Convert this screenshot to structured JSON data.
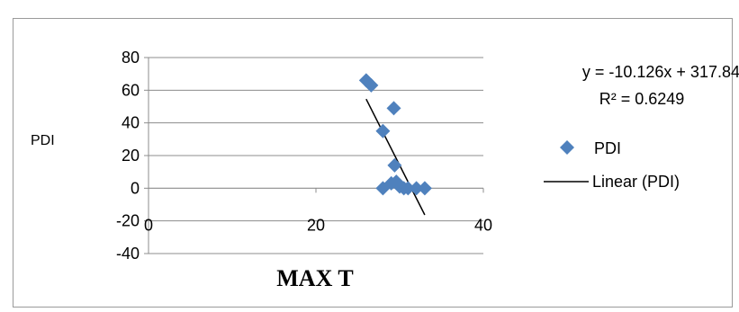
{
  "chart_data": {
    "type": "scatter",
    "xlabel": "MAX T",
    "ylabel": "PDI",
    "xlim": [
      0,
      40
    ],
    "ylim": [
      -40,
      80
    ],
    "x_ticks": [
      0,
      20,
      40
    ],
    "y_ticks": [
      -40,
      -20,
      0,
      20,
      40,
      60,
      80
    ],
    "grid": "horizontal",
    "legend_position": "right",
    "series": [
      {
        "name": "PDI",
        "marker": "diamond",
        "color": "#4F81BD",
        "points": [
          {
            "x": 26.0,
            "y": 66
          },
          {
            "x": 26.6,
            "y": 63
          },
          {
            "x": 28.0,
            "y": 35
          },
          {
            "x": 29.3,
            "y": 49
          },
          {
            "x": 29.4,
            "y": 14
          },
          {
            "x": 28.0,
            "y": 0
          },
          {
            "x": 29.0,
            "y": 3
          },
          {
            "x": 29.6,
            "y": 4
          },
          {
            "x": 30.0,
            "y": 1
          },
          {
            "x": 30.5,
            "y": 0
          },
          {
            "x": 31.0,
            "y": 0
          },
          {
            "x": 32.0,
            "y": 0
          },
          {
            "x": 33.0,
            "y": 0
          }
        ]
      }
    ],
    "trendline": {
      "name": "Linear (PDI)",
      "slope": -10.126,
      "intercept": 317.84,
      "x_range": [
        26.0,
        33.0
      ],
      "color": "#000000"
    },
    "equation_text": "y = -10.126x + 317.84",
    "r_squared_text": "R² = 0.6249"
  }
}
